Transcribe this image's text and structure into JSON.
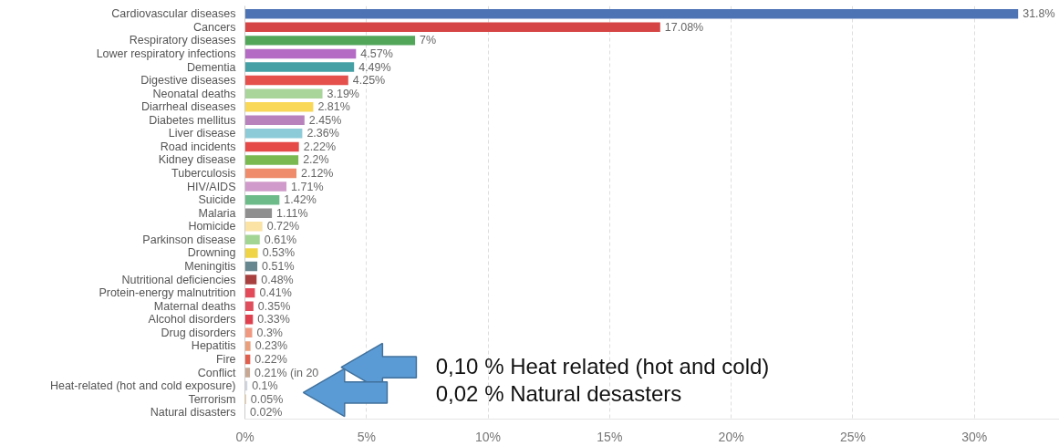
{
  "chart_data": {
    "type": "bar",
    "orientation": "horizontal",
    "categories": [
      "Cardiovascular diseases",
      "Cancers",
      "Respiratory diseases",
      "Lower respiratory infections",
      "Dementia",
      "Digestive diseases",
      "Neonatal deaths",
      "Diarrheal diseases",
      "Diabetes mellitus",
      "Liver disease",
      "Road incidents",
      "Kidney disease",
      "Tuberculosis",
      "HIV/AIDS",
      "Suicide",
      "Malaria",
      "Homicide",
      "Parkinson disease",
      "Drowning",
      "Meningitis",
      "Nutritional deficiencies",
      "Protein-energy malnutrition",
      "Maternal deaths",
      "Alcohol disorders",
      "Drug disorders",
      "Hepatitis",
      "Fire",
      "Conflict",
      "Heat-related (hot and cold exposure)",
      "Terrorism",
      "Natural disasters"
    ],
    "values": [
      31.8,
      17.08,
      7,
      4.57,
      4.49,
      4.25,
      3.19,
      2.81,
      2.45,
      2.36,
      2.22,
      2.2,
      2.12,
      1.71,
      1.42,
      1.11,
      0.72,
      0.61,
      0.53,
      0.51,
      0.48,
      0.41,
      0.35,
      0.33,
      0.3,
      0.23,
      0.22,
      0.21,
      0.1,
      0.05,
      0.02
    ],
    "value_labels": [
      "31.8%",
      "17.08%",
      "7%",
      "4.57%",
      "4.49%",
      "4.25%",
      "3.19%",
      "2.81%",
      "2.45%",
      "2.36%",
      "2.22%",
      "2.2%",
      "2.12%",
      "1.71%",
      "1.42%",
      "1.11%",
      "0.72%",
      "0.61%",
      "0.53%",
      "0.51%",
      "0.48%",
      "0.41%",
      "0.35%",
      "0.33%",
      "0.3%",
      "0.23%",
      "0.22%",
      "0.21% (in 20",
      "0.1%",
      "0.05%",
      "0.02%"
    ],
    "colors": [
      "#4e73b5",
      "#d64545",
      "#52a65a",
      "#b36bc4",
      "#45a0a6",
      "#e5504c",
      "#a9d49a",
      "#f9d857",
      "#b883bd",
      "#8dcbd8",
      "#e54a48",
      "#79b94f",
      "#ee8c6c",
      "#d09bca",
      "#6cbb89",
      "#8f8f8f",
      "#fbe3a6",
      "#a2d594",
      "#f0d447",
      "#66878f",
      "#a84040",
      "#e24b5a",
      "#df4e5c",
      "#e0414e",
      "#ef9a80",
      "#eaa07c",
      "#e06050",
      "#c6a894",
      "#cfd4de",
      "#e6c48e",
      "#d0d0d0"
    ],
    "xlim": [
      0,
      33.5
    ],
    "xticks": [
      {
        "value": 0,
        "label": "0%"
      },
      {
        "value": 5,
        "label": "5%"
      },
      {
        "value": 10,
        "label": "10%"
      },
      {
        "value": 15,
        "label": "15%"
      },
      {
        "value": 20,
        "label": "20%"
      },
      {
        "value": 25,
        "label": "25%"
      },
      {
        "value": 30,
        "label": "30%"
      }
    ],
    "grid": "x",
    "annotations": [
      "0,10 % Heat related (hot and cold)",
      "0,02 % Natural desasters"
    ]
  }
}
